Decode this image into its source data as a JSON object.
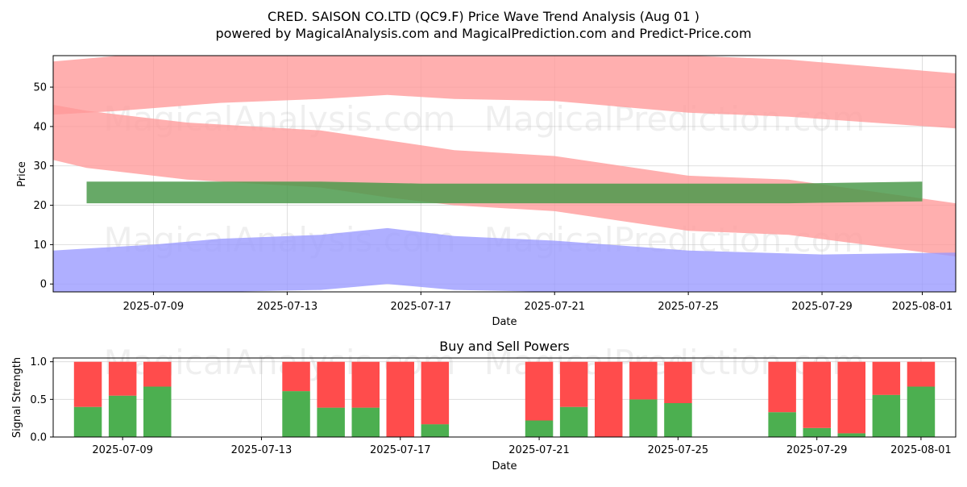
{
  "chart_data": [
    {
      "type": "area",
      "title": "CRED. SAISON CO.LTD (QC9.F) Price Wave Trend Analysis (Aug 01 )",
      "subtitle": "powered by MagicalAnalysis.com and MagicalPrediction.com and Predict-Price.com",
      "xlabel": "Date",
      "ylabel": "Price",
      "x_range": [
        "2025-07-06",
        "2025-08-02"
      ],
      "ylim": [
        -2,
        58
      ],
      "x_ticks": [
        "2025-07-09",
        "2025-07-13",
        "2025-07-17",
        "2025-07-21",
        "2025-07-25",
        "2025-07-29",
        "2025-08-01"
      ],
      "y_ticks": [
        0,
        10,
        20,
        30,
        40,
        50
      ],
      "grid": true,
      "watermarks": [
        "MagicalAnalysis.com",
        "MagicalPrediction.com"
      ],
      "series": [
        {
          "name": "upper red band",
          "color": "#ff9999",
          "x": [
            "2025-07-06",
            "2025-07-08",
            "2025-07-11",
            "2025-07-14",
            "2025-07-16",
            "2025-07-18",
            "2025-07-21",
            "2025-07-25",
            "2025-07-28",
            "2025-08-02"
          ],
          "upper": [
            56.5,
            58,
            58,
            58,
            58,
            58,
            58,
            58,
            57,
            53.5
          ],
          "lower": [
            43,
            44,
            46,
            47,
            48,
            47,
            46.5,
            43.5,
            42.5,
            39.5
          ]
        },
        {
          "name": "middle red band",
          "color": "#ff9999",
          "x": [
            "2025-07-06",
            "2025-07-07",
            "2025-07-10",
            "2025-07-14",
            "2025-07-16",
            "2025-07-18",
            "2025-07-21",
            "2025-07-25",
            "2025-07-28",
            "2025-08-02"
          ],
          "upper": [
            45.5,
            44,
            41,
            39,
            36.5,
            34,
            32.5,
            27.5,
            26.5,
            20.5
          ],
          "lower": [
            31.5,
            29.5,
            26.5,
            24.5,
            22,
            20,
            18.5,
            13.5,
            12.5,
            7
          ]
        },
        {
          "name": "green band",
          "color": "#4c9a4c",
          "x": [
            "2025-07-07",
            "2025-07-10",
            "2025-07-14",
            "2025-07-17",
            "2025-07-21",
            "2025-07-25",
            "2025-07-28",
            "2025-08-01"
          ],
          "upper": [
            26,
            26,
            26,
            25.5,
            25.5,
            25.5,
            25.5,
            26
          ],
          "lower": [
            20.5,
            20.5,
            20.5,
            20.5,
            20.5,
            20.5,
            20.5,
            21
          ]
        },
        {
          "name": "blue band",
          "color": "#9999ff",
          "x": [
            "2025-07-06",
            "2025-07-09",
            "2025-07-11",
            "2025-07-14",
            "2025-07-16",
            "2025-07-18",
            "2025-07-21",
            "2025-07-25",
            "2025-07-29",
            "2025-08-02"
          ],
          "upper": [
            8.5,
            10,
            11.5,
            12.5,
            14.2,
            12.2,
            11,
            8.5,
            7.5,
            8
          ],
          "lower": [
            -2,
            -2,
            -2,
            -1.5,
            0,
            -1.5,
            -2,
            -2,
            -2,
            -2
          ]
        }
      ]
    },
    {
      "type": "bar",
      "title": "Buy and Sell Powers",
      "xlabel": "Date",
      "ylabel": "Signal Strength",
      "x_range": [
        "2025-07-07",
        "2025-08-02"
      ],
      "ylim": [
        0,
        1.05
      ],
      "x_ticks": [
        "2025-07-09",
        "2025-07-13",
        "2025-07-17",
        "2025-07-21",
        "2025-07-25",
        "2025-07-29",
        "2025-08-01"
      ],
      "y_ticks": [
        0.0,
        0.5,
        1.0
      ],
      "y_tick_labels": [
        "0.0",
        "0.5",
        "1.0"
      ],
      "grid": true,
      "buy_color": "#4caf50",
      "sell_color": "#ff4c4c",
      "watermarks": [
        "MagicalAnalysis.com",
        "MagicalPrediction.com"
      ],
      "dates": [
        "2025-07-08",
        "2025-07-09",
        "2025-07-10",
        "2025-07-14",
        "2025-07-15",
        "2025-07-16",
        "2025-07-17",
        "2025-07-18",
        "2025-07-21",
        "2025-07-22",
        "2025-07-23",
        "2025-07-24",
        "2025-07-25",
        "2025-07-28",
        "2025-07-29",
        "2025-07-30",
        "2025-07-31",
        "2025-08-01"
      ],
      "buy": [
        0.4,
        0.55,
        0.67,
        0.61,
        0.39,
        0.39,
        0.0,
        0.17,
        0.22,
        0.4,
        0.0,
        0.5,
        0.45,
        0.33,
        0.12,
        0.05,
        0.56,
        0.67
      ],
      "sell": [
        0.6,
        0.45,
        0.33,
        0.39,
        0.61,
        0.61,
        1.0,
        0.83,
        0.78,
        0.6,
        1.0,
        0.5,
        0.55,
        0.67,
        0.88,
        0.95,
        0.44,
        0.33
      ]
    }
  ]
}
